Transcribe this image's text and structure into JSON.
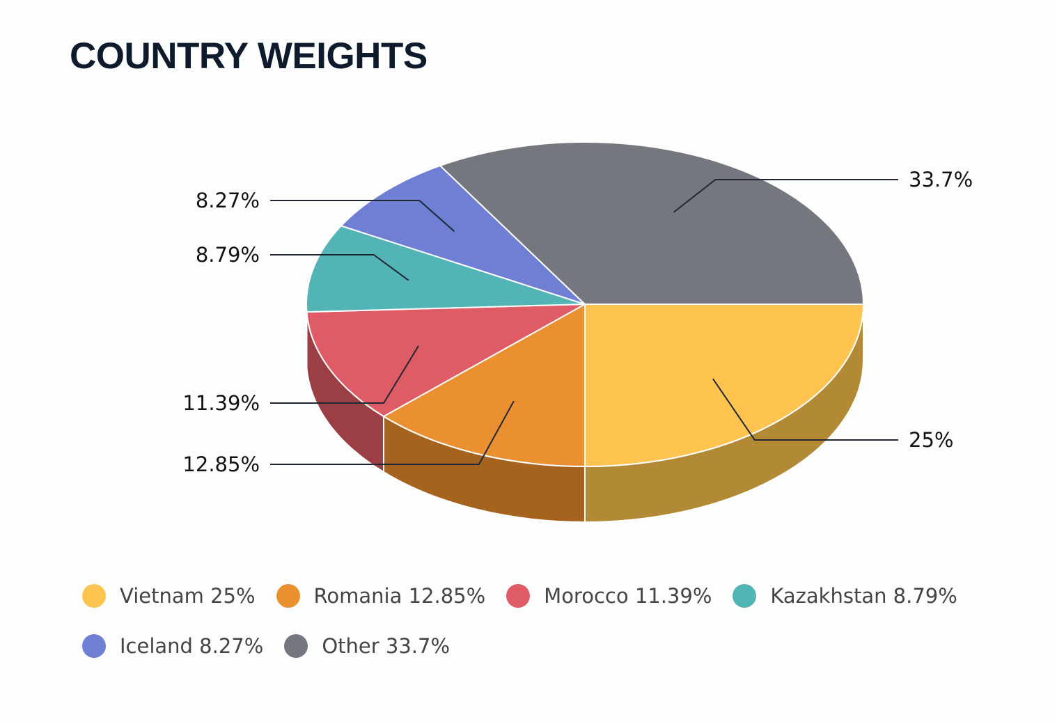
{
  "title": "COUNTRY WEIGHTS",
  "chart_data": {
    "type": "pie",
    "style": "3d",
    "title": "COUNTRY WEIGHTS",
    "legend_position": "bottom",
    "slices": [
      {
        "name": "Vietnam",
        "value": 25,
        "label": "25%",
        "legend": "Vietnam 25%",
        "color": "#fec44f",
        "side_color": "#b28a35"
      },
      {
        "name": "Romania",
        "value": 12.85,
        "label": "12.85%",
        "legend": "Romania 12.85%",
        "color": "#eb9031",
        "side_color": "#a5631f"
      },
      {
        "name": "Morocco",
        "value": 11.39,
        "label": "11.39%",
        "legend": "Morocco 11.39%",
        "color": "#df5b65",
        "side_color": "#9c3f45"
      },
      {
        "name": "Kazakhstan",
        "value": 8.79,
        "label": "8.79%",
        "legend": "Kazakhstan 8.79%",
        "color": "#52b4b4",
        "side_color": "#3a8080"
      },
      {
        "name": "Iceland",
        "value": 8.27,
        "label": "8.27%",
        "legend": "Iceland 8.27%",
        "color": "#6f7fd4",
        "side_color": "#4e5a96"
      },
      {
        "name": "Other",
        "value": 33.7,
        "label": "33.7%",
        "legend": "Other 33.7%",
        "color": "#75777f",
        "side_color": "#55575e"
      }
    ]
  }
}
